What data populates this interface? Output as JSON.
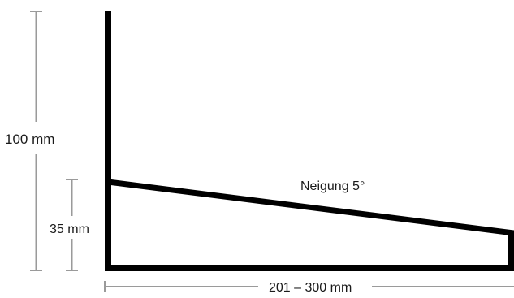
{
  "labels": {
    "height_total": "100 mm",
    "height_low": "35 mm",
    "slope": "Neigung 5°",
    "length": "201 – 300 mm"
  },
  "colors": {
    "profile": "#000000",
    "dimension": "#9a9a9a",
    "text": "#1a1a1a",
    "background": "#ffffff"
  }
}
